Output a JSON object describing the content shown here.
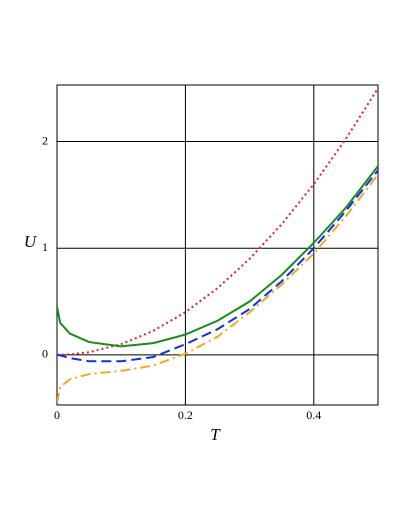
{
  "chart_data": {
    "type": "line",
    "xlabel": "T",
    "ylabel": "U",
    "x": [
      0,
      0.005,
      0.02,
      0.05,
      0.1,
      0.15,
      0.2,
      0.25,
      0.3,
      0.35,
      0.4,
      0.45,
      0.5
    ],
    "series": [
      {
        "color": "#e8201b",
        "linestyle": "dotted",
        "values": [
          0,
          0.0003,
          0.004,
          0.025,
          0.1,
          0.225,
          0.4,
          0.625,
          0.9,
          1.225,
          1.6,
          2.025,
          2.5
        ]
      },
      {
        "color": "#1a8a1a",
        "linestyle": "solid",
        "values": [
          0.45,
          0.3,
          0.2,
          0.12,
          0.08,
          0.11,
          0.19,
          0.32,
          0.5,
          0.75,
          1.05,
          1.38,
          1.77
        ]
      },
      {
        "color": "#1030e0",
        "linestyle": "dashed",
        "values": [
          0,
          -0.005,
          -0.03,
          -0.06,
          -0.06,
          -0.02,
          0.1,
          0.24,
          0.43,
          0.69,
          1.0,
          1.35,
          1.73
        ]
      },
      {
        "color": "#f5a623",
        "linestyle": "dashdot",
        "values": [
          -0.45,
          -0.3,
          -0.23,
          -0.18,
          -0.15,
          -0.1,
          0.01,
          0.17,
          0.4,
          0.66,
          0.95,
          1.3,
          1.69
        ]
      }
    ],
    "xlim": [
      0,
      0.5
    ],
    "ylim": [
      -0.47,
      2.53
    ],
    "xticks": [
      0,
      0.2,
      0.4
    ],
    "yticks": [
      0,
      1,
      2
    ],
    "grid": true
  }
}
